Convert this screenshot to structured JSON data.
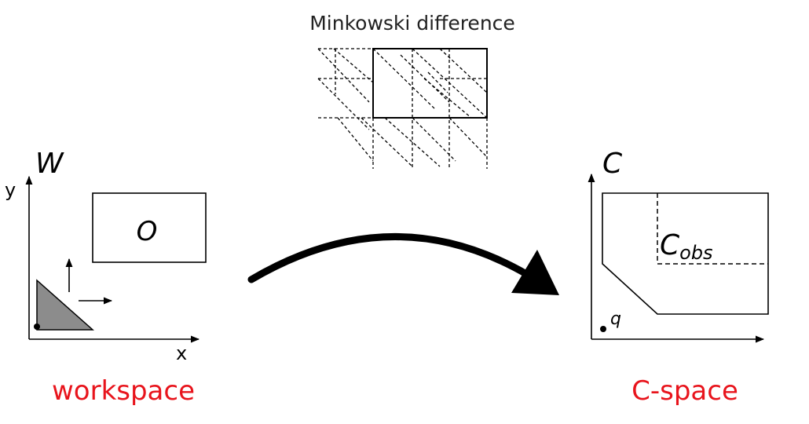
{
  "minkowski": {
    "title": "Minkowski difference"
  },
  "workspace": {
    "symbol": "W",
    "axis_x": "x",
    "axis_y": "y",
    "obstacle_label": "O",
    "caption": "workspace",
    "caption_color": "#e8141c"
  },
  "cspace": {
    "symbol": "C",
    "obstacle_base": "C",
    "obstacle_sub": "obs",
    "point_label": "q",
    "caption": "C-space",
    "caption_color": "#e8141c"
  }
}
